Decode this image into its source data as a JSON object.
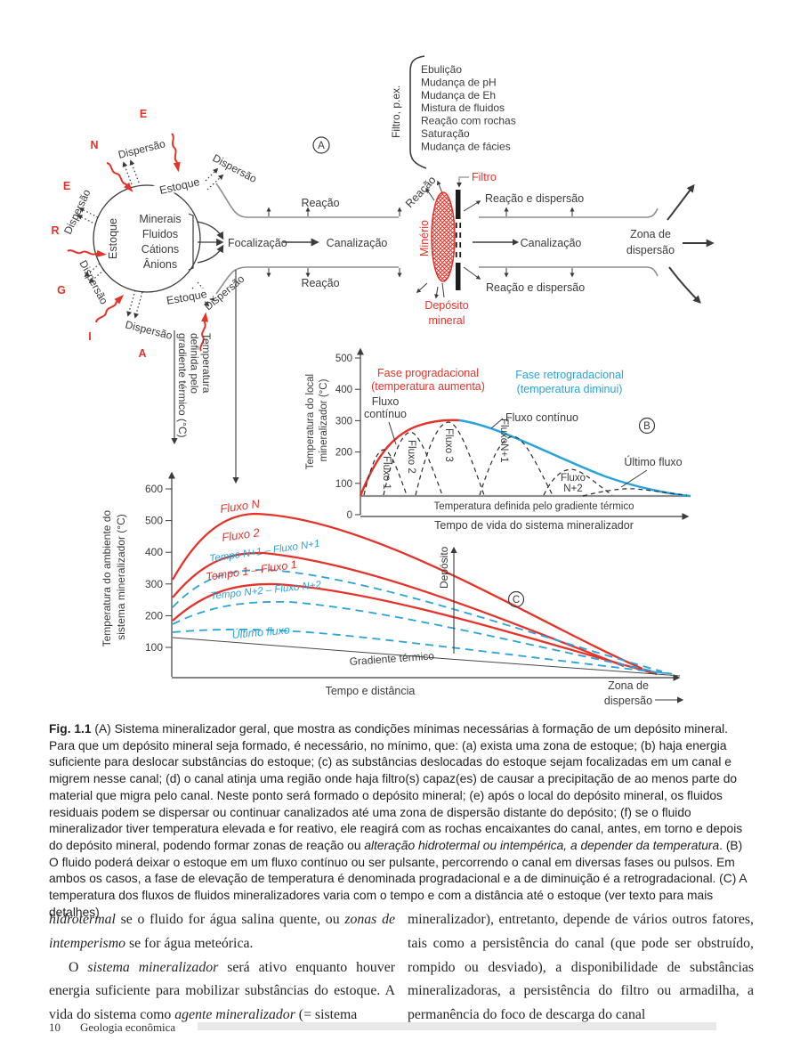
{
  "figure": {
    "panel_a": {
      "badge": "A",
      "filter_box": {
        "title": "Filtro, p.ex.",
        "items": [
          "Ebulição",
          "Mudança de pH",
          "Mudança de Eh",
          "Mistura de fluidos",
          "Reação com rochas",
          "Saturação",
          "Mudança de fácies"
        ]
      },
      "estoque": "Estoque",
      "dispersao": "Dispersão",
      "energia_letters": [
        "E",
        "N",
        "E",
        "R",
        "G",
        "I",
        "A"
      ],
      "stock_contents": [
        "Minerais",
        "Fluidos",
        "Cátions",
        "Ânions"
      ],
      "focalizacao": "Focalização",
      "canalizacao": "Canalização",
      "reacao": "Reação",
      "reacao_e_dispersao": "Reação e dispersão",
      "filtro": "Filtro",
      "minerio": "Minério",
      "deposito_mineral": [
        "Depósito",
        "mineral"
      ],
      "zona_de_dispersao": [
        "Zona de",
        "dispersão"
      ],
      "gradiente_vertical": [
        "Temperatura",
        "definida pelo",
        "gradiente térmico (°C)"
      ]
    },
    "panel_b": {
      "badge": "B",
      "y_ticks": [
        "0",
        "100",
        "200",
        "300",
        "400",
        "500"
      ],
      "y_label": [
        "Temperatura do local",
        "mineralizador (°C)"
      ],
      "x_label_1": "Temperatura definida pelo gradiente térmico",
      "x_label_2": "Tempo de vida do sistema mineralizador",
      "fase_progradacional": [
        "Fase progradacional",
        "(temperatura aumenta)"
      ],
      "fase_retrogradacional": [
        "Fase retrogradacional",
        "(temperatura diminui)"
      ],
      "fluxo_continuo_left": [
        "Fluxo",
        "contínuo"
      ],
      "fluxo_continuo_right": "Fluxo contínuo",
      "fluxos": [
        "Fluxo 1",
        "Fluxo 2",
        "Fluxo 3",
        "FluxoN+1"
      ],
      "fluxo_n2": [
        "Fluxo",
        "N+2"
      ],
      "ultimo_fluxo": "Último fluxo"
    },
    "panel_c": {
      "badge": "C",
      "y_ticks": [
        "100",
        "200",
        "300",
        "400",
        "500",
        "600"
      ],
      "y_label": [
        "Temperatura do ambiente do",
        "sistema mineralizador (°C)"
      ],
      "x_label": "Tempo e distância",
      "curve_labels": {
        "fluxo_n": "Fluxo N",
        "fluxo_2": "Fluxo 2",
        "tempo_1": "Tempo 1 – Fluxo 1",
        "tempo_n1": "Tempo N+1 – Fluxo N+1",
        "tempo_n2": "Tempo N+2 – Fluxo N+2",
        "ultimo_fluxo": "Último fluxo",
        "gradiente_termico": "Gradiente térmico"
      },
      "deposito": "Depósito",
      "zona_de_dispersao": [
        "Zona de",
        "dispersão"
      ]
    }
  },
  "caption": {
    "prefix": "Fig. 1.1",
    "segments": [
      {
        "t": " (A) Sistema mineralizador geral, que mostra as condições mínimas necessárias à formação de um depósito mineral. Para que um depósito mineral seja formado, é necessário, no mínimo, que: (a) exista uma zona de estoque; (b) haja energia suficiente para deslocar substâncias do estoque; (c) as substâncias deslocadas do estoque sejam focalizadas em um canal e migrem nesse canal; (d) o canal atinja uma região onde haja filtro(s) capaz(es) de causar a precipitação de ao menos parte do material que migra pelo canal. Neste ponto será formado o depósito mineral; (e) após o local do depósito mineral, os fluidos residuais podem se dispersar ou continuar canalizados até uma zona de dispersão distante do depósito; (f) se o fluido mineralizador tiver temperatura elevada e for reativo, ele reagirá com as rochas encaixantes do canal, antes, em torno e depois do depósito mineral, podendo formar zonas de reação ou ",
        "style": "normal"
      },
      {
        "t": "alteração hidrotermal ou intempérica, a depender da temperatura",
        "style": "italic"
      },
      {
        "t": ". (B) O fluido poderá deixar o estoque em um fluxo contínuo ou ser pulsante, percorrendo o canal em diversas fases ou pulsos. Em ambos os casos, a fase de elevação de temperatura é denominada progradacional e a de diminuição é a retrogradacional. (C) A temperatura dos fluxos de fluidos mineralizadores varia com o tempo e com a distância até o estoque (ver texto para mais detalhes)",
        "style": "normal"
      }
    ]
  },
  "body_text": {
    "left_column": [
      {
        "segments": [
          {
            "t": "hidrotermal",
            "style": "italic"
          },
          {
            "t": " se o fluido for água salina quente, ou ",
            "style": "normal"
          },
          {
            "t": "zonas de intemperismo",
            "style": "italic"
          },
          {
            "t": " se for água meteórica.",
            "style": "normal"
          }
        ]
      },
      {
        "segments": [
          {
            "t": "O ",
            "style": "normal"
          },
          {
            "t": "sistema mineralizador",
            "style": "italic"
          },
          {
            "t": " será ativo enquanto houver energia suficiente para mobilizar substâncias do estoque. A vida do sistema como ",
            "style": "normal"
          },
          {
            "t": "agente mineralizador",
            "style": "italic"
          },
          {
            "t": " (= sistema",
            "style": "normal"
          }
        ]
      }
    ],
    "right_column": [
      {
        "segments": [
          {
            "t": "mineralizador), entretanto, depende de vários outros fatores, tais como a persistência do canal (que pode ser obstruído, rompido ou desviado), a disponibilidade de substâncias mineralizadoras, a persistência do filtro ou armadilha, a permanência do foco de descarga do canal",
            "style": "normal"
          }
        ]
      }
    ]
  },
  "footer": {
    "page_number": "10",
    "book_title": "Geologia econômica"
  },
  "colors": {
    "accent_red": "#e5332a",
    "accent_blue": "#2aa3dc",
    "ink": "#3b3b3b",
    "channel_gray": "#8f8f8f"
  }
}
